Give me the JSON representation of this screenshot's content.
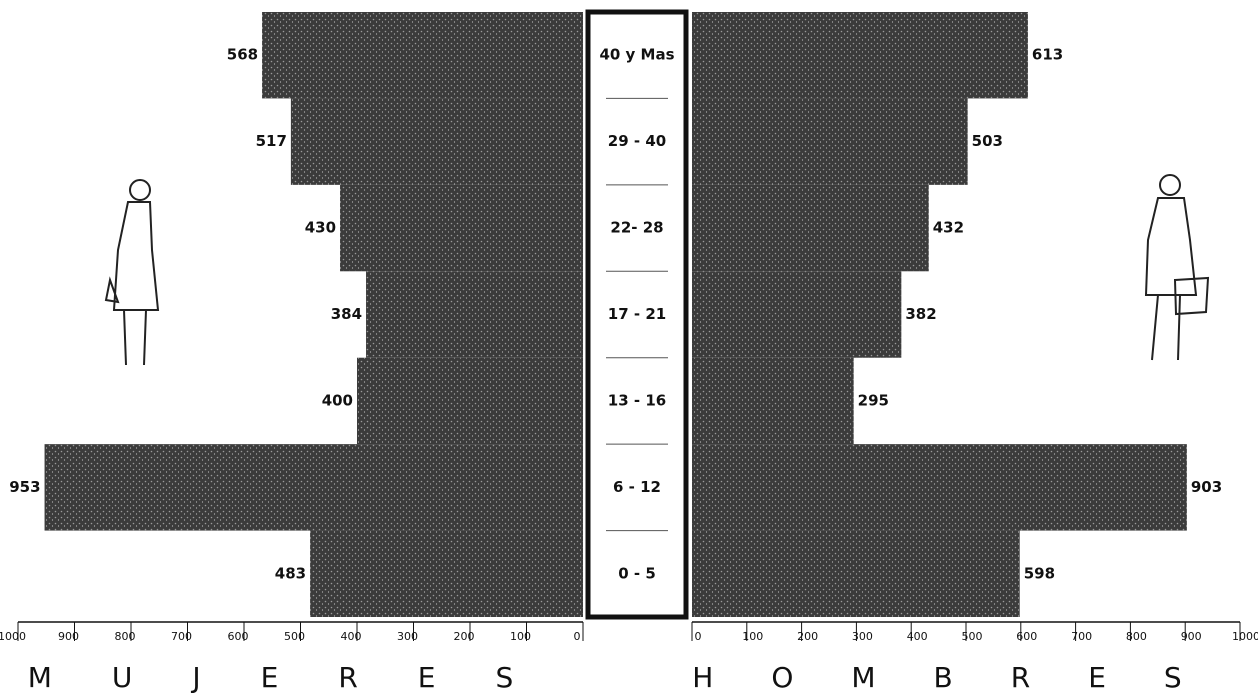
{
  "chart_data": {
    "type": "pyramid",
    "categories": [
      "40 y Mas",
      "29 - 40",
      "22- 28",
      "17 - 21",
      "13 - 16",
      "6 - 12",
      "0 - 5"
    ],
    "series": [
      {
        "name": "MUJERES",
        "color": "#3b3b3b",
        "values": [
          568,
          517,
          430,
          384,
          400,
          953,
          483
        ]
      },
      {
        "name": "HOMBRES",
        "color": "#3b3b3b",
        "values": [
          613,
          503,
          432,
          382,
          295,
          903,
          598
        ]
      }
    ],
    "xlim": [
      0,
      1000
    ],
    "xticks": [
      0,
      100,
      200,
      300,
      400,
      500,
      600,
      700,
      800,
      900,
      1000
    ]
  }
}
